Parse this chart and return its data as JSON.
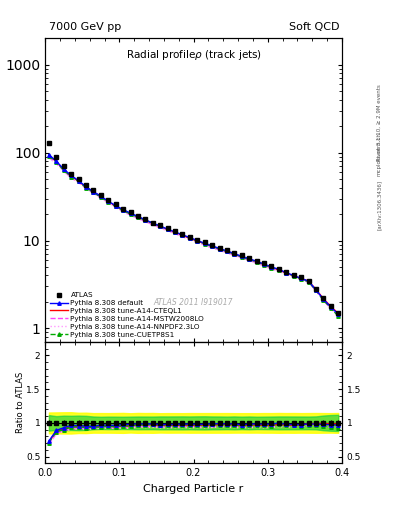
{
  "title_left": "7000 GeV pp",
  "title_right": "Soft QCD",
  "main_title": "Radial profileρ (track jets)",
  "xlabel": "Charged Particle r",
  "ylabel_ratio": "Ratio to ATLAS",
  "right_label": "Rivet 3.1.10, ≥ 2.9M events",
  "watermark": "ATLAS 2011 I919017",
  "arxiv_label": "[arXiv:1306.3436]",
  "mcplots_label": "mcplots.cern.ch",
  "x_data": [
    0.005,
    0.015,
    0.025,
    0.035,
    0.045,
    0.055,
    0.065,
    0.075,
    0.085,
    0.095,
    0.105,
    0.115,
    0.125,
    0.135,
    0.145,
    0.155,
    0.165,
    0.175,
    0.185,
    0.195,
    0.205,
    0.215,
    0.225,
    0.235,
    0.245,
    0.255,
    0.265,
    0.275,
    0.285,
    0.295,
    0.305,
    0.315,
    0.325,
    0.335,
    0.345,
    0.355,
    0.365,
    0.375,
    0.385,
    0.395
  ],
  "atlas_y": [
    130,
    90,
    70,
    57,
    50,
    43,
    38,
    33,
    29,
    26,
    23,
    21,
    19,
    17.5,
    16,
    15,
    13.8,
    12.8,
    11.8,
    11,
    10.2,
    9.5,
    8.8,
    8.2,
    7.7,
    7.2,
    6.8,
    6.3,
    5.9,
    5.5,
    5.1,
    4.7,
    4.4,
    4.1,
    3.8,
    3.5,
    2.8,
    2.2,
    1.8,
    1.5
  ],
  "atlas_yerr_stat": [
    5,
    3,
    2.5,
    2,
    1.8,
    1.5,
    1.2,
    1.0,
    0.9,
    0.8,
    0.7,
    0.65,
    0.6,
    0.55,
    0.5,
    0.48,
    0.44,
    0.41,
    0.38,
    0.35,
    0.33,
    0.31,
    0.28,
    0.26,
    0.24,
    0.23,
    0.21,
    0.2,
    0.18,
    0.17,
    0.16,
    0.15,
    0.14,
    0.13,
    0.12,
    0.11,
    0.09,
    0.08,
    0.07,
    0.06
  ],
  "atlas_yerr_sys": [
    20,
    14,
    11,
    9,
    7.5,
    6.5,
    5.5,
    4.8,
    4.2,
    3.8,
    3.4,
    3.0,
    2.8,
    2.55,
    2.35,
    2.15,
    2.0,
    1.85,
    1.7,
    1.6,
    1.48,
    1.38,
    1.28,
    1.19,
    1.12,
    1.04,
    0.98,
    0.91,
    0.85,
    0.8,
    0.74,
    0.69,
    0.64,
    0.6,
    0.55,
    0.51,
    0.41,
    0.32,
    0.26,
    0.22
  ],
  "pythia_default_y": [
    95,
    80,
    65,
    55,
    48,
    41,
    36,
    32,
    28,
    25,
    22.5,
    20.5,
    18.8,
    17.2,
    15.8,
    14.6,
    13.5,
    12.5,
    11.6,
    10.8,
    10.0,
    9.3,
    8.7,
    8.1,
    7.6,
    7.1,
    6.6,
    6.2,
    5.8,
    5.4,
    5.0,
    4.7,
    4.3,
    4.0,
    3.7,
    3.45,
    2.75,
    2.15,
    1.75,
    1.45
  ],
  "pythia_cteq_y": [
    93,
    79,
    64,
    54,
    47,
    40.5,
    35.5,
    31.5,
    27.5,
    24.5,
    22,
    20,
    18.5,
    17,
    15.6,
    14.4,
    13.3,
    12.3,
    11.4,
    10.6,
    9.8,
    9.2,
    8.5,
    8.0,
    7.5,
    7.0,
    6.5,
    6.1,
    5.7,
    5.3,
    4.9,
    4.6,
    4.25,
    3.95,
    3.7,
    3.45,
    2.78,
    2.18,
    1.78,
    1.48
  ],
  "pythia_mstw_y": [
    88,
    76,
    62,
    52,
    46,
    39.5,
    35,
    31,
    27,
    24,
    21.5,
    19.5,
    18,
    16.5,
    15.2,
    14.1,
    13.0,
    12.0,
    11.2,
    10.4,
    9.6,
    9.0,
    8.3,
    7.8,
    7.3,
    6.8,
    6.4,
    5.9,
    5.6,
    5.2,
    4.8,
    4.5,
    4.2,
    3.9,
    3.6,
    3.35,
    2.68,
    2.08,
    1.68,
    1.4
  ],
  "pythia_nnpdf_y": [
    87,
    75,
    61,
    51.5,
    45.5,
    39,
    34.5,
    30.5,
    26.8,
    23.8,
    21.3,
    19.3,
    17.8,
    16.3,
    15.0,
    13.9,
    12.8,
    11.9,
    11.0,
    10.2,
    9.5,
    8.8,
    8.2,
    7.7,
    7.2,
    6.7,
    6.3,
    5.85,
    5.5,
    5.1,
    4.75,
    4.45,
    4.1,
    3.85,
    3.6,
    3.38,
    2.72,
    2.12,
    1.72,
    1.43
  ],
  "pythia_cuetp_y": [
    92,
    78,
    63,
    53.5,
    47,
    40,
    35.5,
    31,
    27.5,
    24.5,
    22,
    20,
    18.5,
    17,
    15.7,
    14.5,
    13.4,
    12.4,
    11.5,
    10.7,
    9.9,
    9.2,
    8.6,
    8.0,
    7.5,
    7.0,
    6.5,
    6.1,
    5.7,
    5.3,
    4.9,
    4.6,
    4.25,
    3.95,
    3.65,
    3.4,
    2.7,
    2.1,
    1.7,
    1.38
  ],
  "color_atlas": "#000000",
  "color_default": "#0000FF",
  "color_cteq": "#FF0000",
  "color_mstw": "#FF44FF",
  "color_nnpdf": "#FF99FF",
  "color_cuetp": "#00AA00",
  "color_yellow_band": "#FFFF00",
  "color_green_band": "#00CC44",
  "xlim": [
    0,
    0.4
  ],
  "ylim_main": [
    0.7,
    2000
  ],
  "ylim_ratio": [
    0.4,
    2.2
  ]
}
